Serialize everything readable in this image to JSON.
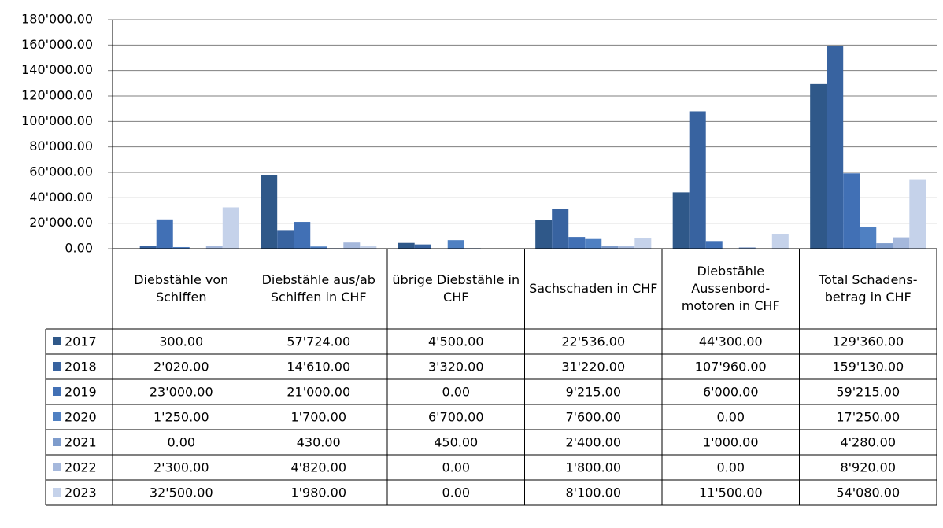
{
  "chart_data": {
    "type": "bar",
    "categories": [
      "Diebstähle von Schiffen",
      "Diebstähle aus/ab Schiffen in CHF",
      "übrige Diebstähle in CHF",
      "Sachschaden in CHF",
      "Diebstähle Aussenbord-motoren in CHF",
      "Total Schadens-betrag in CHF"
    ],
    "series": [
      {
        "name": "2017",
        "color": "#2f5889",
        "values": [
          300,
          57724,
          4500,
          22536,
          44300,
          129360
        ],
        "value_labels": [
          "300.00",
          "57'724.00",
          "4'500.00",
          "22'536.00",
          "44'300.00",
          "129'360.00"
        ]
      },
      {
        "name": "2018",
        "color": "#3863a0",
        "values": [
          2020,
          14610,
          3320,
          31220,
          107960,
          159130
        ],
        "value_labels": [
          "2'020.00",
          "14'610.00",
          "3'320.00",
          "31'220.00",
          "107'960.00",
          "159'130.00"
        ]
      },
      {
        "name": "2019",
        "color": "#4170b5",
        "values": [
          23000,
          21000,
          0,
          9215,
          6000,
          59215
        ],
        "value_labels": [
          "23'000.00",
          "21'000.00",
          "0.00",
          "9'215.00",
          "6'000.00",
          "59'215.00"
        ]
      },
      {
        "name": "2020",
        "color": "#4f80c2",
        "values": [
          1250,
          1700,
          6700,
          7600,
          0,
          17250
        ],
        "value_labels": [
          "1'250.00",
          "1'700.00",
          "6'700.00",
          "7'600.00",
          "0.00",
          "17'250.00"
        ]
      },
      {
        "name": "2021",
        "color": "#7e9ccc",
        "values": [
          0,
          430,
          450,
          2400,
          1000,
          4280
        ],
        "value_labels": [
          "0.00",
          "430.00",
          "450.00",
          "2'400.00",
          "1'000.00",
          "4'280.00"
        ]
      },
      {
        "name": "2022",
        "color": "#a5b8dc",
        "values": [
          2300,
          4820,
          0,
          1800,
          0,
          8920
        ],
        "value_labels": [
          "2'300.00",
          "4'820.00",
          "0.00",
          "1'800.00",
          "0.00",
          "8'920.00"
        ]
      },
      {
        "name": "2023",
        "color": "#c5d2ea",
        "values": [
          32500,
          1980,
          0,
          8100,
          11500,
          54080
        ],
        "value_labels": [
          "32'500.00",
          "1'980.00",
          "0.00",
          "8'100.00",
          "11'500.00",
          "54'080.00"
        ]
      }
    ],
    "ylim": [
      0,
      180000
    ],
    "yticks": [
      {
        "value": 0,
        "label": "0.00"
      },
      {
        "value": 20000,
        "label": "20'000.00"
      },
      {
        "value": 40000,
        "label": "40'000.00"
      },
      {
        "value": 60000,
        "label": "60'000.00"
      },
      {
        "value": 80000,
        "label": "80'000.00"
      },
      {
        "value": 100000,
        "label": "100'000.00"
      },
      {
        "value": 120000,
        "label": "120'000.00"
      },
      {
        "value": 140000,
        "label": "140'000.00"
      },
      {
        "value": 160000,
        "label": "160'000.00"
      },
      {
        "value": 180000,
        "label": "180'000.00"
      }
    ],
    "grid": true
  }
}
